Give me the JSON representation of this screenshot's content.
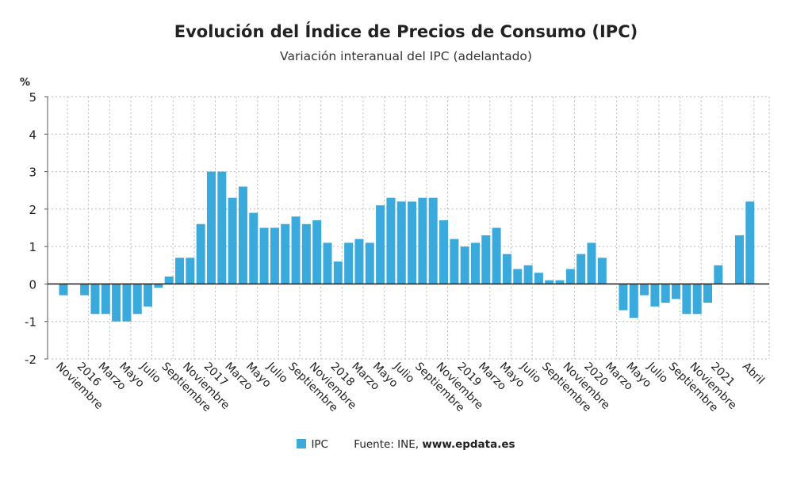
{
  "chart_data": {
    "type": "bar",
    "title": "Evolución del Índice de Precios de Consumo (IPC)",
    "subtitle": "Variación interanual del IPC (adelantado)",
    "ylabel": "%",
    "ylim": [
      -2,
      5
    ],
    "yticks": [
      -2,
      -1,
      0,
      1,
      2,
      3,
      4,
      5
    ],
    "grid": true,
    "legend_position": "bottom",
    "color": "#3aaadc",
    "categories": [
      "Noviembre",
      "",
      "2016",
      "",
      "Marzo",
      "",
      "Mayo",
      "",
      "Julio",
      "",
      "Septiembre",
      "",
      "Noviembre",
      "",
      "2017",
      "",
      "Marzo",
      "",
      "Mayo",
      "",
      "Julio",
      "",
      "Septiembre",
      "",
      "Noviembre",
      "",
      "2018",
      "",
      "Marzo",
      "",
      "Mayo",
      "",
      "Julio",
      "",
      "Septiembre",
      "",
      "Noviembre",
      "",
      "2019",
      "",
      "Marzo",
      "",
      "Mayo",
      "",
      "Julio",
      "",
      "Septiembre",
      "",
      "Noviembre",
      "",
      "2020",
      "",
      "Marzo",
      "",
      "Mayo",
      "",
      "Julio",
      "",
      "Septiembre",
      "",
      "Noviembre",
      "",
      "2021",
      "",
      "",
      "Abril"
    ],
    "series": [
      {
        "name": "IPC",
        "values": [
          -0.3,
          0.0,
          -0.3,
          -0.8,
          -0.8,
          -1.0,
          -1.0,
          -0.8,
          -0.6,
          -0.1,
          0.2,
          0.7,
          0.7,
          1.6,
          3.0,
          3.0,
          2.3,
          2.6,
          1.9,
          1.5,
          1.5,
          1.6,
          1.8,
          1.6,
          1.7,
          1.1,
          0.6,
          1.1,
          1.2,
          1.1,
          2.1,
          2.3,
          2.2,
          2.2,
          2.3,
          2.3,
          1.7,
          1.2,
          1.0,
          1.1,
          1.3,
          1.5,
          0.8,
          0.4,
          0.5,
          0.3,
          0.1,
          0.1,
          0.4,
          0.8,
          1.1,
          0.7,
          0.0,
          -0.7,
          -0.9,
          -0.3,
          -0.6,
          -0.5,
          -0.4,
          -0.8,
          -0.8,
          -0.5,
          0.5,
          0.0,
          1.3,
          2.2
        ]
      }
    ]
  },
  "legend": {
    "series_label": "IPC",
    "source_prefix": "Fuente: INE,",
    "source_site": "www.epdata.es"
  }
}
